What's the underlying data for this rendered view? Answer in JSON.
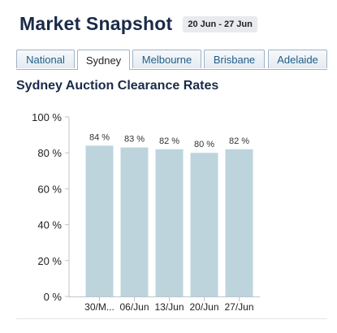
{
  "header": {
    "title": "Market Snapshot",
    "date_range": "20 Jun - 27 Jun"
  },
  "tabs": [
    {
      "label": "National",
      "active": false
    },
    {
      "label": "Sydney",
      "active": true
    },
    {
      "label": "Melbourne",
      "active": false
    },
    {
      "label": "Brisbane",
      "active": false
    },
    {
      "label": "Adelaide",
      "active": false
    }
  ],
  "chart_data": {
    "type": "bar",
    "title": "Sydney Auction Clearance Rates",
    "categories": [
      "30/M...",
      "06/Jun",
      "13/Jun",
      "20/Jun",
      "27/Jun"
    ],
    "values": [
      84,
      83,
      82,
      80,
      82
    ],
    "data_labels": [
      "84 %",
      "83 %",
      "82 %",
      "80 %",
      "82 %"
    ],
    "y_ticks": [
      0,
      20,
      40,
      60,
      80,
      100
    ],
    "y_tick_labels": [
      "0 %",
      "20 %",
      "40 %",
      "60 %",
      "80 %",
      "100 %"
    ],
    "ylim": [
      0,
      100
    ],
    "xlabel": "",
    "ylabel": "",
    "grid": false,
    "legend": "none",
    "bar_color": "#bdd4dd",
    "axis_color": "#bfc5ca"
  }
}
